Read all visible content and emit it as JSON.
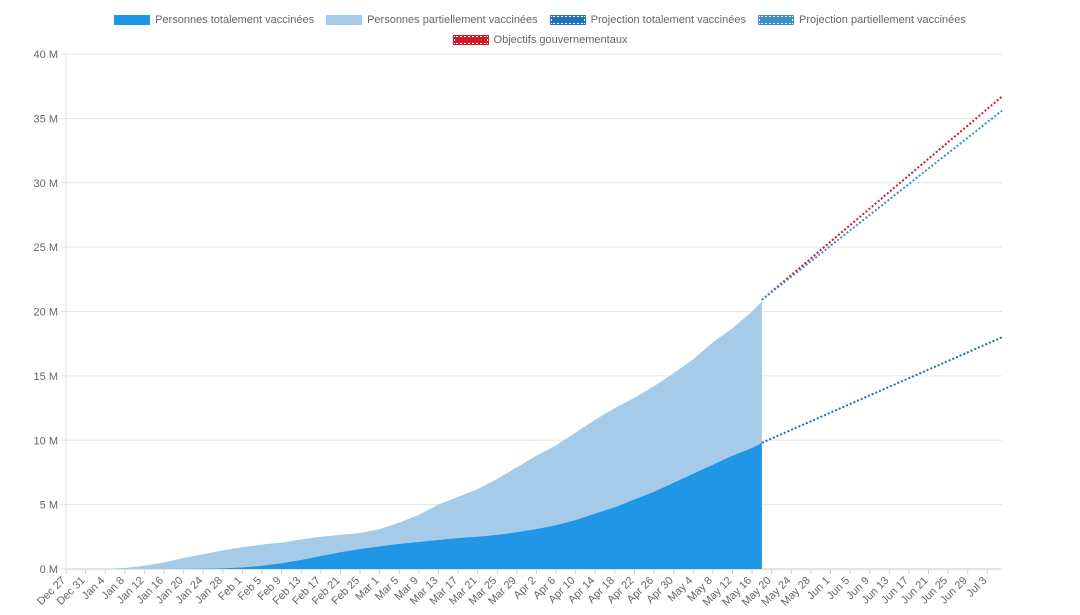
{
  "chart_data": {
    "type": "area",
    "y_unit_suffix": " M",
    "ylim": [
      0,
      40
    ],
    "yticks": [
      0,
      5,
      10,
      15,
      20,
      25,
      30,
      35,
      40
    ],
    "x_range": [
      "2020-12-27",
      "2021-07-06"
    ],
    "xtick_labels": [
      "Dec 27",
      "Dec 31",
      "Jan 4",
      "Jan 8",
      "Jan 12",
      "Jan 16",
      "Jan 20",
      "Jan 24",
      "Jan 28",
      "Feb 1",
      "Feb 5",
      "Feb 9",
      "Feb 13",
      "Feb 17",
      "Feb 21",
      "Feb 25",
      "Mar 1",
      "Mar 5",
      "Mar 9",
      "Mar 13",
      "Mar 17",
      "Mar 21",
      "Mar 25",
      "Mar 29",
      "Apr 2",
      "Apr 6",
      "Apr 10",
      "Apr 14",
      "Apr 18",
      "Apr 22",
      "Apr 26",
      "Apr 30",
      "May 4",
      "May 8",
      "May 12",
      "May 16",
      "May 20",
      "May 24",
      "May 28",
      "Jun 1",
      "Jun 5",
      "Jun 9",
      "Jun 13",
      "Jun 17",
      "Jun 21",
      "Jun 25",
      "Jun 29",
      "Jul 3"
    ],
    "xtick_dates": [
      "2020-12-27",
      "2020-12-31",
      "2021-01-04",
      "2021-01-08",
      "2021-01-12",
      "2021-01-16",
      "2021-01-20",
      "2021-01-24",
      "2021-01-28",
      "2021-02-01",
      "2021-02-05",
      "2021-02-09",
      "2021-02-13",
      "2021-02-17",
      "2021-02-21",
      "2021-02-25",
      "2021-03-01",
      "2021-03-05",
      "2021-03-09",
      "2021-03-13",
      "2021-03-17",
      "2021-03-21",
      "2021-03-25",
      "2021-03-29",
      "2021-04-02",
      "2021-04-06",
      "2021-04-10",
      "2021-04-14",
      "2021-04-18",
      "2021-04-22",
      "2021-04-26",
      "2021-04-30",
      "2021-05-04",
      "2021-05-08",
      "2021-05-12",
      "2021-05-16",
      "2021-05-20",
      "2021-05-24",
      "2021-05-28",
      "2021-06-01",
      "2021-06-05",
      "2021-06-09",
      "2021-06-13",
      "2021-06-17",
      "2021-06-21",
      "2021-06-25",
      "2021-06-29",
      "2021-07-03"
    ],
    "legend": {
      "placement": "top",
      "rows": [
        [
          {
            "label": "Personnes totalement vaccinées",
            "color": "#1f97e6",
            "style": "solid"
          },
          {
            "label": "Personnes partiellement vaccinées",
            "color": "#a5cbe8",
            "style": "solid"
          },
          {
            "label": "Projection totalement vaccinées",
            "color": "#1c72b8",
            "style": "dotted"
          },
          {
            "label": "Projection partiellement vaccinées",
            "color": "#3b8ecc",
            "style": "dotted"
          }
        ],
        [
          {
            "label": "Objectifs gouvernementaux",
            "color": "#d11a2a",
            "style": "dotted"
          }
        ]
      ]
    },
    "series": [
      {
        "name": "Personnes partiellement vaccinées",
        "kind": "area",
        "color": "#a5cbe8",
        "x": [
          "2020-12-27",
          "2021-01-04",
          "2021-01-08",
          "2021-01-12",
          "2021-01-16",
          "2021-01-20",
          "2021-01-24",
          "2021-01-28",
          "2021-02-01",
          "2021-02-05",
          "2021-02-09",
          "2021-02-13",
          "2021-02-17",
          "2021-02-21",
          "2021-02-25",
          "2021-03-01",
          "2021-03-05",
          "2021-03-09",
          "2021-03-13",
          "2021-03-17",
          "2021-03-21",
          "2021-03-25",
          "2021-03-29",
          "2021-04-02",
          "2021-04-06",
          "2021-04-10",
          "2021-04-14",
          "2021-04-18",
          "2021-04-22",
          "2021-04-26",
          "2021-04-30",
          "2021-05-04",
          "2021-05-08",
          "2021-05-12",
          "2021-05-16",
          "2021-05-18"
        ],
        "values": [
          0,
          0.02,
          0.08,
          0.25,
          0.5,
          0.85,
          1.15,
          1.45,
          1.7,
          1.9,
          2.05,
          2.3,
          2.5,
          2.65,
          2.8,
          3.1,
          3.6,
          4.2,
          5.0,
          5.6,
          6.2,
          7.0,
          7.9,
          8.8,
          9.6,
          10.6,
          11.6,
          12.5,
          13.3,
          14.2,
          15.2,
          16.3,
          17.6,
          18.7,
          20.0,
          20.8
        ]
      },
      {
        "name": "Personnes totalement vaccinées",
        "kind": "area",
        "color": "#1f97e6",
        "x": [
          "2020-12-27",
          "2021-01-16",
          "2021-01-24",
          "2021-01-28",
          "2021-02-01",
          "2021-02-05",
          "2021-02-09",
          "2021-02-13",
          "2021-02-17",
          "2021-02-21",
          "2021-02-25",
          "2021-03-01",
          "2021-03-05",
          "2021-03-09",
          "2021-03-13",
          "2021-03-17",
          "2021-03-21",
          "2021-03-25",
          "2021-03-29",
          "2021-04-02",
          "2021-04-06",
          "2021-04-10",
          "2021-04-14",
          "2021-04-18",
          "2021-04-22",
          "2021-04-26",
          "2021-04-30",
          "2021-05-04",
          "2021-05-08",
          "2021-05-12",
          "2021-05-16",
          "2021-05-18"
        ],
        "values": [
          0,
          0,
          0.02,
          0.05,
          0.12,
          0.25,
          0.45,
          0.7,
          1.0,
          1.3,
          1.55,
          1.75,
          1.95,
          2.1,
          2.25,
          2.4,
          2.5,
          2.65,
          2.85,
          3.1,
          3.4,
          3.8,
          4.3,
          4.8,
          5.4,
          6.0,
          6.7,
          7.4,
          8.1,
          8.8,
          9.4,
          9.8
        ]
      },
      {
        "name": "Objectifs gouvernementaux",
        "kind": "dotted-line",
        "color": "#d11a2a",
        "x": [
          "2021-05-18",
          "2021-07-06"
        ],
        "values": [
          20.9,
          36.7
        ]
      },
      {
        "name": "Projection partiellement vaccinées",
        "kind": "dotted-line",
        "color": "#3b8ecc",
        "x": [
          "2021-05-18",
          "2021-07-06"
        ],
        "values": [
          20.9,
          35.6
        ]
      },
      {
        "name": "Projection totalement vaccinées",
        "kind": "dotted-line",
        "color": "#1c72b8",
        "x": [
          "2021-05-18",
          "2021-07-06"
        ],
        "values": [
          9.8,
          18.0
        ]
      }
    ],
    "grid": true
  }
}
